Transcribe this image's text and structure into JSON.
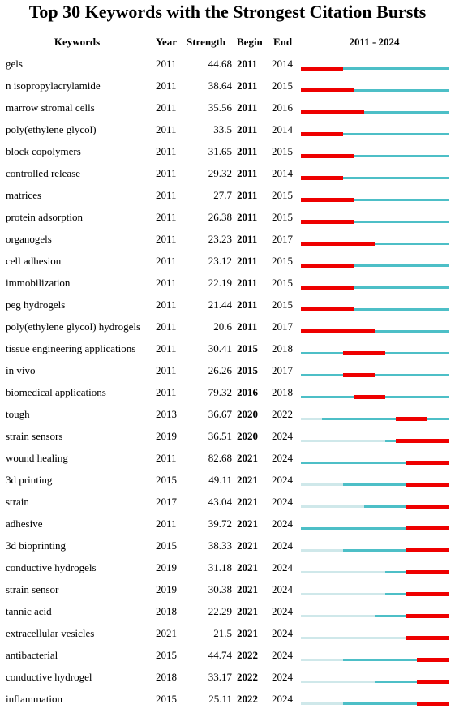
{
  "title": "Top 30 Keywords with the Strongest Citation Bursts",
  "headers": {
    "keywords": "Keywords",
    "year": "Year",
    "strength": "Strength",
    "begin": "Begin",
    "end": "End",
    "range": "2011 - 2024"
  },
  "colors": {
    "burst": "#ee0000",
    "active": "#4dbfc7",
    "inactive": "#cfe8ea"
  },
  "chart_data": {
    "type": "table",
    "timeline_start": 2011,
    "timeline_end": 2024,
    "columns": [
      "Keywords",
      "Year",
      "Strength",
      "Begin",
      "End"
    ],
    "rows": [
      {
        "keyword": "gels",
        "year": "2011",
        "strength": "44.68",
        "begin": "2011",
        "end": "2014"
      },
      {
        "keyword": "n isopropylacrylamide",
        "year": "2011",
        "strength": "38.64",
        "begin": "2011",
        "end": "2015"
      },
      {
        "keyword": "marrow stromal cells",
        "year": "2011",
        "strength": "35.56",
        "begin": "2011",
        "end": "2016"
      },
      {
        "keyword": "poly(ethylene glycol)",
        "year": "2011",
        "strength": "33.5",
        "begin": "2011",
        "end": "2014"
      },
      {
        "keyword": "block copolymers",
        "year": "2011",
        "strength": "31.65",
        "begin": "2011",
        "end": "2015"
      },
      {
        "keyword": "controlled release",
        "year": "2011",
        "strength": "29.32",
        "begin": "2011",
        "end": "2014"
      },
      {
        "keyword": "matrices",
        "year": "2011",
        "strength": "27.7",
        "begin": "2011",
        "end": "2015"
      },
      {
        "keyword": "protein adsorption",
        "year": "2011",
        "strength": "26.38",
        "begin": "2011",
        "end": "2015"
      },
      {
        "keyword": "organogels",
        "year": "2011",
        "strength": "23.23",
        "begin": "2011",
        "end": "2017"
      },
      {
        "keyword": "cell adhesion",
        "year": "2011",
        "strength": "23.12",
        "begin": "2011",
        "end": "2015"
      },
      {
        "keyword": "immobilization",
        "year": "2011",
        "strength": "22.19",
        "begin": "2011",
        "end": "2015"
      },
      {
        "keyword": "peg hydrogels",
        "year": "2011",
        "strength": "21.44",
        "begin": "2011",
        "end": "2015"
      },
      {
        "keyword": "poly(ethylene glycol) hydrogels",
        "year": "2011",
        "strength": "20.6",
        "begin": "2011",
        "end": "2017"
      },
      {
        "keyword": "tissue engineering applications",
        "year": "2011",
        "strength": "30.41",
        "begin": "2015",
        "end": "2018"
      },
      {
        "keyword": "in vivo",
        "year": "2011",
        "strength": "26.26",
        "begin": "2015",
        "end": "2017"
      },
      {
        "keyword": "biomedical applications",
        "year": "2011",
        "strength": "79.32",
        "begin": "2016",
        "end": "2018"
      },
      {
        "keyword": "tough",
        "year": "2013",
        "strength": "36.67",
        "begin": "2020",
        "end": "2022"
      },
      {
        "keyword": "strain sensors",
        "year": "2019",
        "strength": "36.51",
        "begin": "2020",
        "end": "2024"
      },
      {
        "keyword": "wound healing",
        "year": "2011",
        "strength": "82.68",
        "begin": "2021",
        "end": "2024"
      },
      {
        "keyword": "3d printing",
        "year": "2015",
        "strength": "49.11",
        "begin": "2021",
        "end": "2024"
      },
      {
        "keyword": "strain",
        "year": "2017",
        "strength": "43.04",
        "begin": "2021",
        "end": "2024"
      },
      {
        "keyword": "adhesive",
        "year": "2011",
        "strength": "39.72",
        "begin": "2021",
        "end": "2024"
      },
      {
        "keyword": "3d bioprinting",
        "year": "2015",
        "strength": "38.33",
        "begin": "2021",
        "end": "2024"
      },
      {
        "keyword": "conductive hydrogels",
        "year": "2019",
        "strength": "31.18",
        "begin": "2021",
        "end": "2024"
      },
      {
        "keyword": "strain sensor",
        "year": "2019",
        "strength": "30.38",
        "begin": "2021",
        "end": "2024"
      },
      {
        "keyword": "tannic acid",
        "year": "2018",
        "strength": "22.29",
        "begin": "2021",
        "end": "2024"
      },
      {
        "keyword": "extracellular vesicles",
        "year": "2021",
        "strength": "21.5",
        "begin": "2021",
        "end": "2024"
      },
      {
        "keyword": "antibacterial",
        "year": "2015",
        "strength": "44.74",
        "begin": "2022",
        "end": "2024"
      },
      {
        "keyword": "conductive hydrogel",
        "year": "2018",
        "strength": "33.17",
        "begin": "2022",
        "end": "2024"
      },
      {
        "keyword": "inflammation",
        "year": "2015",
        "strength": "25.11",
        "begin": "2022",
        "end": "2024"
      }
    ]
  }
}
